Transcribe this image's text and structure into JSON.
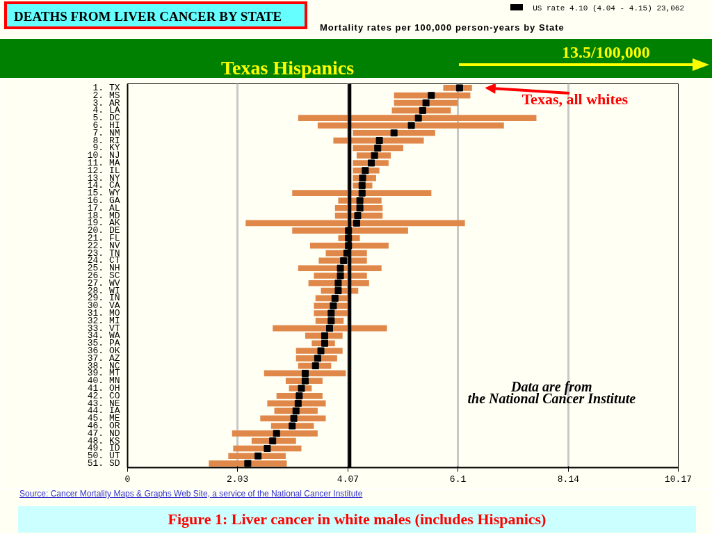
{
  "chart_data": {
    "type": "bar",
    "orientation": "horizontal",
    "title": "DEATHS FROM LIVER CANCER BY STATE",
    "subtitle": "Mortality rates per 100,000 person-years by State",
    "categories": [
      "1. TX",
      "2. MS",
      "3. AR",
      "4. LA",
      "5. DC",
      "6. HI",
      "7. NM",
      "8. RI",
      "9. KY",
      "10. NJ",
      "11. MA",
      "12. IL",
      "13. NY",
      "14. CA",
      "15. WY",
      "16. GA",
      "17. AL",
      "18. MD",
      "19. AK",
      "20. DE",
      "21. FL",
      "22. NV",
      "23. TN",
      "24. CT",
      "25. NH",
      "26. SC",
      "27. WV",
      "28. WI",
      "29. IN",
      "30. VA",
      "31. MO",
      "32. MI",
      "33. VT",
      "34. WA",
      "35. PA",
      "36. OK",
      "37. AZ",
      "38. NC",
      "39. MT",
      "40. MN",
      "41. OH",
      "42. CO",
      "43. NE",
      "44. IA",
      "45. ME",
      "46. OR",
      "47. ND",
      "48. KS",
      "49. ID",
      "50. UT",
      "51. SD"
    ],
    "series": [
      {
        "base": [
          5.83,
          4.92,
          4.92,
          4.88,
          3.15,
          3.51,
          4.16,
          3.8,
          4.16,
          4.23,
          4.16,
          4.16,
          4.16,
          4.16,
          3.04,
          3.89,
          3.83,
          3.83,
          2.18,
          3.04,
          3.89,
          3.37,
          3.66,
          3.53,
          3.15,
          3.44,
          3.34,
          3.57,
          3.47,
          3.44,
          3.44,
          3.47,
          2.68,
          3.28,
          3.4,
          3.11,
          3.11,
          3.15,
          2.52,
          2.92,
          2.98,
          2.75,
          2.58,
          2.71,
          2.45,
          2.65,
          1.93,
          2.29,
          1.95,
          1.86,
          1.5
        ],
        "color": "#e0874a",
        "values": [
          0.53,
          1.41,
          1.18,
          1.09,
          4.4,
          3.44,
          1.52,
          1.67,
          0.93,
          0.63,
          0.66,
          0.49,
          0.43,
          0.36,
          2.57,
          0.8,
          0.88,
          0.88,
          4.05,
          2.14,
          0.4,
          1.45,
          0.76,
          0.89,
          1.54,
          0.98,
          1.12,
          0.69,
          0.61,
          0.64,
          0.64,
          0.52,
          2.11,
          0.69,
          0.43,
          0.86,
          0.76,
          0.61,
          1.51,
          0.68,
          0.42,
          0.85,
          1.08,
          0.8,
          1.21,
          0.79,
          1.58,
          0.82,
          1.26,
          1.06,
          1.44
        ]
      },
      {
        "type": "scatter",
        "color": "#000000",
        "marker": "square",
        "values": [
          6.13,
          5.61,
          5.51,
          5.45,
          5.37,
          5.24,
          4.92,
          4.65,
          4.62,
          4.56,
          4.5,
          4.39,
          4.34,
          4.33,
          4.33,
          4.29,
          4.29,
          4.25,
          4.23,
          4.08,
          4.08,
          4.08,
          4.05,
          3.99,
          3.93,
          3.93,
          3.89,
          3.89,
          3.83,
          3.8,
          3.76,
          3.76,
          3.73,
          3.64,
          3.64,
          3.57,
          3.51,
          3.47,
          3.28,
          3.28,
          3.21,
          3.17,
          3.15,
          3.11,
          3.07,
          3.04,
          2.75,
          2.68,
          2.58,
          2.41,
          2.22
        ]
      }
    ],
    "xlim": [
      0,
      10.17
    ],
    "xticks": [
      0,
      2.03,
      4.07,
      6.1,
      8.14,
      10.17
    ],
    "grid": "x",
    "ref_lines": [
      {
        "axis": "x",
        "value": 4.1,
        "label": "US rate 4.10 (4.04 - 4.15) 23,062",
        "color": "#000000"
      }
    ],
    "annotations": [
      "Texas Hispanics",
      "13.5/100,000",
      "Texas, all whites",
      "Data are from the National Cancer Institute",
      "Source: Cancer Mortality Maps & Graphs Web Site, a service of the National Cancer Institute",
      "Figure 1: Liver cancer in white males (includes Hispanics)"
    ]
  }
}
